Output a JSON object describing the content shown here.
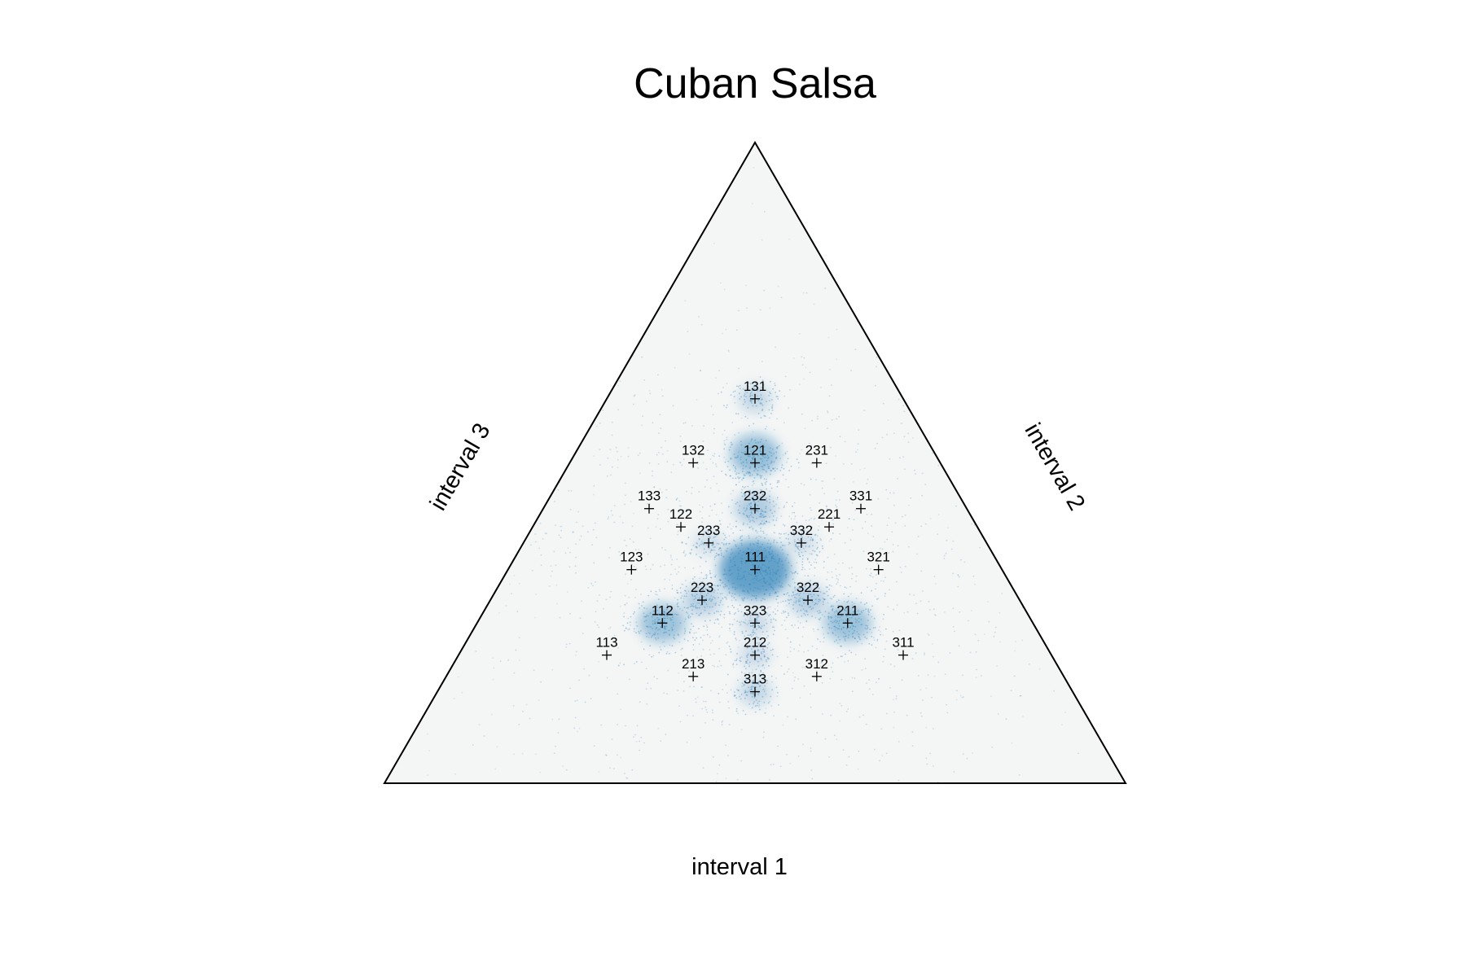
{
  "chart_data": {
    "type": "scatter",
    "subtype": "ternary-density",
    "title": "Cuban Salsa",
    "axis_labels": {
      "bottom": "interval 1",
      "right": "interval 2",
      "left": "interval 3"
    },
    "colors": {
      "density": "#1f77b4",
      "background": "#f4f5f5",
      "outline": "#000000",
      "markers": "#000000"
    },
    "density_clusters": [
      {
        "label": "111",
        "intensity": 1.0
      },
      {
        "label": "121",
        "intensity": 0.55
      },
      {
        "label": "112",
        "intensity": 0.5
      },
      {
        "label": "211",
        "intensity": 0.5
      },
      {
        "label": "232",
        "intensity": 0.35
      },
      {
        "label": "223",
        "intensity": 0.3
      },
      {
        "label": "322",
        "intensity": 0.3
      },
      {
        "label": "131",
        "intensity": 0.2
      },
      {
        "label": "313",
        "intensity": 0.2
      },
      {
        "label": "323",
        "intensity": 0.15
      },
      {
        "label": "212",
        "intensity": 0.15
      },
      {
        "label": "233",
        "intensity": 0.12
      },
      {
        "label": "332",
        "intensity": 0.12
      }
    ],
    "rhythm_points": [
      {
        "label": "111",
        "ratio": [
          1,
          1,
          1
        ]
      },
      {
        "label": "112",
        "ratio": [
          1,
          1,
          2
        ]
      },
      {
        "label": "113",
        "ratio": [
          1,
          1,
          3
        ]
      },
      {
        "label": "121",
        "ratio": [
          1,
          2,
          1
        ]
      },
      {
        "label": "122",
        "ratio": [
          1,
          2,
          2
        ]
      },
      {
        "label": "123",
        "ratio": [
          1,
          2,
          3
        ]
      },
      {
        "label": "131",
        "ratio": [
          1,
          3,
          1
        ]
      },
      {
        "label": "132",
        "ratio": [
          1,
          3,
          2
        ]
      },
      {
        "label": "133",
        "ratio": [
          1,
          3,
          3
        ]
      },
      {
        "label": "211",
        "ratio": [
          2,
          1,
          1
        ]
      },
      {
        "label": "212",
        "ratio": [
          2,
          1,
          2
        ]
      },
      {
        "label": "213",
        "ratio": [
          2,
          1,
          3
        ]
      },
      {
        "label": "221",
        "ratio": [
          2,
          2,
          1
        ]
      },
      {
        "label": "223",
        "ratio": [
          2,
          2,
          3
        ]
      },
      {
        "label": "231",
        "ratio": [
          2,
          3,
          1
        ]
      },
      {
        "label": "232",
        "ratio": [
          2,
          3,
          2
        ]
      },
      {
        "label": "233",
        "ratio": [
          2,
          3,
          3
        ]
      },
      {
        "label": "311",
        "ratio": [
          3,
          1,
          1
        ]
      },
      {
        "label": "312",
        "ratio": [
          3,
          1,
          2
        ]
      },
      {
        "label": "313",
        "ratio": [
          3,
          1,
          3
        ]
      },
      {
        "label": "321",
        "ratio": [
          3,
          2,
          1
        ]
      },
      {
        "label": "322",
        "ratio": [
          3,
          2,
          2
        ]
      },
      {
        "label": "323",
        "ratio": [
          3,
          2,
          3
        ]
      },
      {
        "label": "331",
        "ratio": [
          3,
          3,
          1
        ]
      },
      {
        "label": "332",
        "ratio": [
          3,
          3,
          2
        ]
      }
    ]
  }
}
